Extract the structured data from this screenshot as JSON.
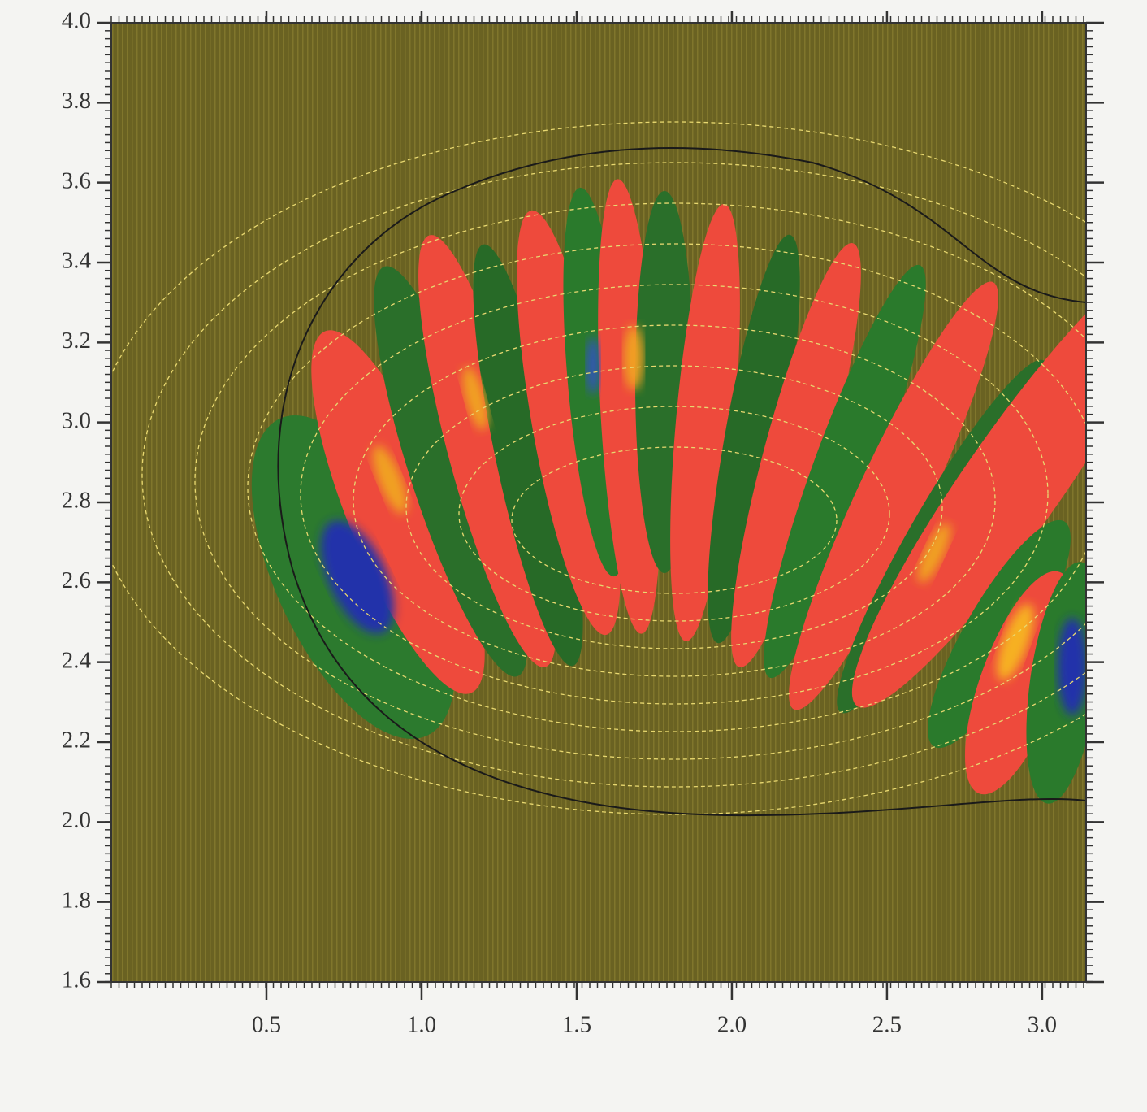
{
  "chart_data": {
    "type": "contour",
    "xlim": [
      0,
      3.14159
    ],
    "ylim": [
      1.6,
      4.0
    ],
    "xticks": [
      0.5,
      {
        "value": 1.0,
        "label": "1.0"
      },
      1.5,
      {
        "value": 2.0,
        "label": "2.0"
      },
      2.5,
      {
        "value": 3.0,
        "label": "3.0"
      }
    ],
    "yticks": [
      1.6,
      1.8,
      {
        "value": 2.0,
        "label": "2.0"
      },
      2.2,
      2.4,
      2.6,
      2.8,
      {
        "value": 3.0,
        "label": "3.0"
      },
      3.2,
      3.4,
      3.6,
      3.8,
      {
        "value": 4.0,
        "label": "4.0"
      }
    ]
  }
}
